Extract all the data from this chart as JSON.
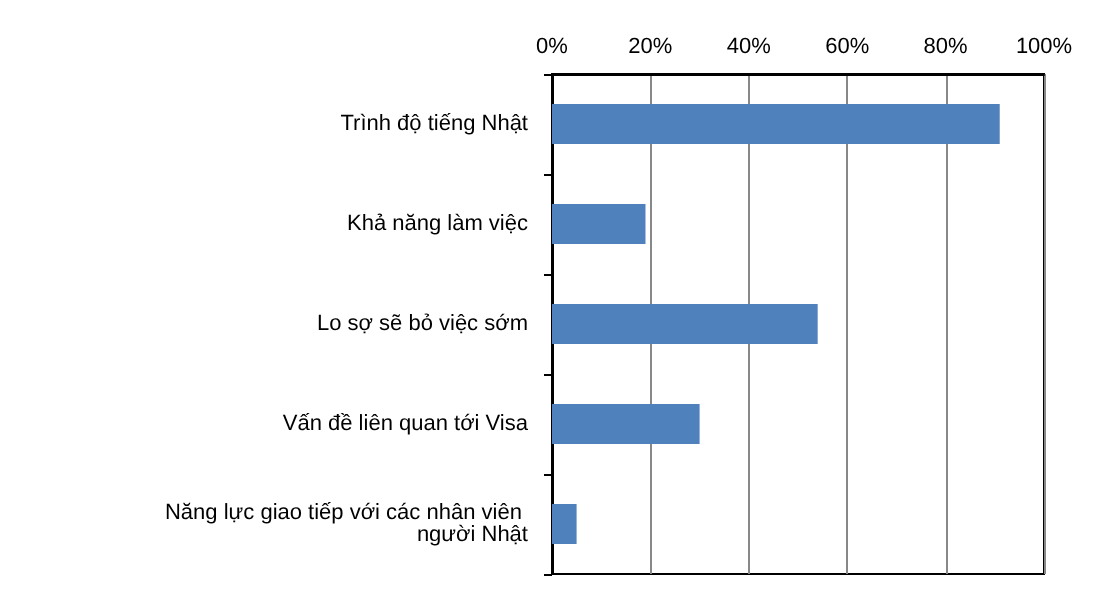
{
  "chart_data": {
    "type": "bar",
    "orientation": "horizontal",
    "categories": [
      "Trình độ tiếng Nhật",
      "Khả năng làm việc",
      "Lo sợ sẽ bỏ việc sớm",
      "Vấn đề liên quan tới Visa",
      "Năng lực giao tiếp với các nhân viên người Nhật"
    ],
    "values": [
      91,
      19,
      54,
      30,
      5
    ],
    "color": "#4f81bd",
    "xlim": [
      0,
      100
    ],
    "xticks": [
      {
        "value": 0,
        "label": "0%"
      },
      {
        "value": 20,
        "label": "20%"
      },
      {
        "value": 40,
        "label": "40%"
      },
      {
        "value": 60,
        "label": "60%"
      },
      {
        "value": 80,
        "label": "80%"
      },
      {
        "value": 100,
        "label": "100%"
      }
    ],
    "grid": "x"
  }
}
